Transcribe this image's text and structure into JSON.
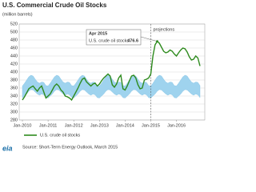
{
  "chart_data": {
    "type": "line",
    "title": "U.S. Commercial Crude Oil Stocks",
    "subtitle": "(million barrels)",
    "x": [
      "2010-01",
      "2010-02",
      "2010-03",
      "2010-04",
      "2010-05",
      "2010-06",
      "2010-07",
      "2010-08",
      "2010-09",
      "2010-10",
      "2010-11",
      "2010-12",
      "2011-01",
      "2011-02",
      "2011-03",
      "2011-04",
      "2011-05",
      "2011-06",
      "2011-07",
      "2011-08",
      "2011-09",
      "2011-10",
      "2011-11",
      "2011-12",
      "2012-01",
      "2012-02",
      "2012-03",
      "2012-04",
      "2012-05",
      "2012-06",
      "2012-07",
      "2012-08",
      "2012-09",
      "2012-10",
      "2012-11",
      "2012-12",
      "2013-01",
      "2013-02",
      "2013-03",
      "2013-04",
      "2013-05",
      "2013-06",
      "2013-07",
      "2013-08",
      "2013-09",
      "2013-10",
      "2013-11",
      "2013-12",
      "2014-01",
      "2014-02",
      "2014-03",
      "2014-04",
      "2014-05",
      "2014-06",
      "2014-07",
      "2014-08",
      "2014-09",
      "2014-10",
      "2014-11",
      "2014-12",
      "2015-01",
      "2015-02",
      "2015-03",
      "2015-04",
      "2015-05",
      "2015-06",
      "2015-07",
      "2015-08",
      "2015-09",
      "2015-10",
      "2015-11",
      "2015-12",
      "2016-01",
      "2016-02",
      "2016-03",
      "2016-04",
      "2016-05",
      "2016-06",
      "2016-07",
      "2016-08",
      "2016-09",
      "2016-10",
      "2016-11",
      "2016-12"
    ],
    "series": [
      {
        "name": "U.S. crude oil stocks",
        "color": "#2e8b1e",
        "values": [
          330,
          338,
          348,
          358,
          362,
          365,
          358,
          352,
          360,
          365,
          350,
          335,
          340,
          345,
          355,
          365,
          370,
          365,
          355,
          350,
          340,
          338,
          335,
          330,
          340,
          350,
          360,
          372,
          382,
          385,
          375,
          370,
          365,
          370,
          372,
          365,
          370,
          378,
          385,
          390,
          395,
          390,
          368,
          362,
          370,
          385,
          392,
          358,
          355,
          365,
          378,
          390,
          392,
          385,
          368,
          358,
          360,
          380,
          382,
          385,
          395,
          440,
          468,
          476.6,
          472,
          462,
          452,
          448,
          450,
          455,
          452,
          445,
          440,
          448,
          455,
          460,
          458,
          450,
          438,
          430,
          432,
          440,
          435,
          415
        ]
      }
    ],
    "band": {
      "color": "#9fd3ee",
      "lower": [
        335,
        340,
        345,
        352,
        356,
        355,
        350,
        345,
        342,
        345,
        343,
        336,
        335,
        340,
        345,
        352,
        356,
        355,
        350,
        345,
        342,
        345,
        343,
        336,
        335,
        340,
        345,
        352,
        356,
        355,
        350,
        345,
        342,
        345,
        343,
        336,
        335,
        340,
        345,
        352,
        356,
        355,
        350,
        345,
        342,
        345,
        343,
        336,
        335,
        340,
        345,
        352,
        356,
        355,
        350,
        345,
        342,
        345,
        343,
        336,
        335,
        340,
        345,
        352,
        356,
        355,
        350,
        345,
        342,
        345,
        343,
        336,
        335,
        340,
        345,
        352,
        356,
        355,
        350,
        345,
        342,
        345,
        343,
        336
      ],
      "upper": [
        365,
        372,
        380,
        388,
        392,
        390,
        382,
        375,
        372,
        375,
        374,
        366,
        365,
        372,
        380,
        388,
        392,
        390,
        382,
        375,
        372,
        375,
        374,
        366,
        365,
        372,
        380,
        388,
        392,
        390,
        382,
        375,
        372,
        375,
        374,
        366,
        365,
        372,
        380,
        388,
        392,
        390,
        382,
        375,
        372,
        375,
        374,
        366,
        365,
        372,
        380,
        388,
        392,
        390,
        382,
        375,
        372,
        375,
        374,
        366,
        365,
        372,
        380,
        388,
        392,
        390,
        382,
        375,
        372,
        375,
        374,
        366,
        365,
        372,
        380,
        388,
        392,
        390,
        382,
        375,
        372,
        375,
        374,
        366
      ]
    },
    "xlim": [
      "2010-01",
      "2016-12"
    ],
    "xticks": [
      {
        "value": "2010-01",
        "label": "Jan-2010"
      },
      {
        "value": "2011-01",
        "label": "Jan-2011"
      },
      {
        "value": "2012-01",
        "label": "Jan-2012"
      },
      {
        "value": "2013-01",
        "label": "Jan-2013"
      },
      {
        "value": "2014-01",
        "label": "Jan-2014"
      },
      {
        "value": "2015-01",
        "label": "Jan-2015"
      },
      {
        "value": "2016-01",
        "label": "Jan-2016"
      }
    ],
    "ylim": [
      280,
      520
    ],
    "yticks": [
      280,
      300,
      320,
      340,
      360,
      380,
      400,
      420,
      440,
      460,
      480,
      500,
      520
    ],
    "grid": true,
    "projection": {
      "start": "2015-01",
      "label": "projections"
    },
    "annotation": {
      "x": "2015-04",
      "title": "Apr 2015",
      "label": "U.S. crude oil stocks",
      "value": 476.6
    },
    "source": "Source: Short-Term Energy Outlook, March 2015",
    "logo": "eia"
  }
}
